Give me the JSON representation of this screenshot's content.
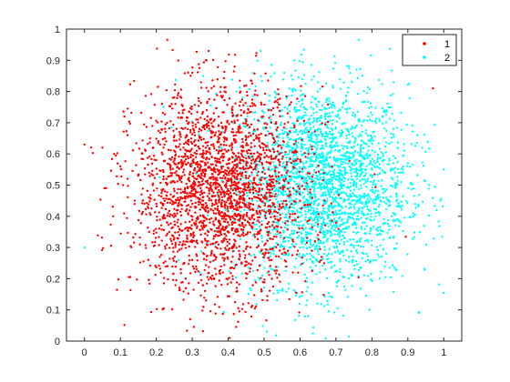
{
  "chart_data": {
    "type": "scatter",
    "title": "",
    "xlabel": "",
    "ylabel": "",
    "xlim": [
      -0.05,
      1.05
    ],
    "ylim": [
      0,
      1
    ],
    "xticks": [
      "0",
      "0.1",
      "0.2",
      "0.3",
      "0.4",
      "0.5",
      "0.6",
      "0.7",
      "0.8",
      "0.9",
      "1"
    ],
    "yticks": [
      "0",
      "0.1",
      "0.2",
      "0.3",
      "0.4",
      "0.5",
      "0.6",
      "0.7",
      "0.8",
      "0.9",
      "1"
    ],
    "grid": false,
    "legend_position": "top-right",
    "series": [
      {
        "name": "1",
        "color": "#ff0000",
        "approx_center": [
          0.38,
          0.48
        ],
        "x": [
          0.0,
          0.05,
          0.06,
          0.08,
          0.1,
          0.12,
          0.14,
          0.15,
          0.17,
          0.18,
          0.19,
          0.2,
          0.2,
          0.21,
          0.22,
          0.22,
          0.23,
          0.23,
          0.24,
          0.24,
          0.25,
          0.25,
          0.26,
          0.26,
          0.27,
          0.27,
          0.28,
          0.28,
          0.29,
          0.29,
          0.3,
          0.3,
          0.3,
          0.31,
          0.31,
          0.32,
          0.32,
          0.33,
          0.33,
          0.34,
          0.34,
          0.35,
          0.35,
          0.36,
          0.36,
          0.37,
          0.37,
          0.38,
          0.38,
          0.39,
          0.39,
          0.4,
          0.4,
          0.41,
          0.41,
          0.42,
          0.42,
          0.43,
          0.44,
          0.45,
          0.46,
          0.47,
          0.48,
          0.49,
          0.5,
          0.51,
          0.52,
          0.53,
          0.55,
          0.56,
          0.58,
          0.6,
          0.62,
          0.64,
          0.66,
          0.7,
          0.97
        ],
        "y": [
          0.63,
          0.62,
          0.49,
          0.4,
          0.56,
          0.66,
          0.45,
          0.53,
          0.61,
          0.35,
          0.5,
          0.58,
          0.44,
          0.27,
          0.62,
          0.52,
          0.38,
          0.7,
          0.56,
          0.47,
          0.33,
          0.61,
          0.53,
          0.42,
          0.78,
          0.58,
          0.49,
          0.36,
          0.64,
          0.52,
          0.44,
          0.26,
          0.86,
          0.57,
          0.48,
          0.38,
          0.68,
          0.54,
          0.45,
          0.31,
          0.9,
          0.6,
          0.5,
          0.41,
          0.73,
          0.55,
          0.35,
          0.63,
          0.47,
          0.28,
          0.8,
          0.52,
          0.4,
          0.67,
          0.44,
          0.32,
          0.58,
          0.49,
          0.37,
          0.71,
          0.43,
          0.55,
          0.3,
          0.62,
          0.46,
          0.35,
          0.74,
          0.4,
          0.28,
          0.52,
          0.22,
          0.45,
          0.33,
          0.6,
          0.27,
          0.38,
          0.81
        ]
      },
      {
        "name": "2",
        "color": "#00ffff",
        "approx_center": [
          0.66,
          0.5
        ],
        "x": [
          0.0,
          0.22,
          0.28,
          0.33,
          0.38,
          0.41,
          0.44,
          0.47,
          0.49,
          0.51,
          0.53,
          0.55,
          0.56,
          0.57,
          0.58,
          0.59,
          0.6,
          0.61,
          0.62,
          0.63,
          0.64,
          0.65,
          0.66,
          0.67,
          0.68,
          0.69,
          0.7,
          0.71,
          0.72,
          0.73,
          0.74,
          0.75,
          0.76,
          0.77,
          0.78,
          0.79,
          0.8,
          0.81,
          0.82,
          0.83,
          0.84,
          0.85,
          0.86,
          0.87,
          0.88,
          0.9,
          0.92,
          0.94,
          0.96,
          0.98,
          1.0
        ],
        "y": [
          0.3,
          0.75,
          0.2,
          0.85,
          0.62,
          0.38,
          0.78,
          0.5,
          0.93,
          0.66,
          0.42,
          0.72,
          0.55,
          0.3,
          0.8,
          0.62,
          0.47,
          0.25,
          0.7,
          0.56,
          0.37,
          0.83,
          0.6,
          0.44,
          0.28,
          0.66,
          0.52,
          0.35,
          0.76,
          0.58,
          0.41,
          0.3,
          0.63,
          0.49,
          0.36,
          0.72,
          0.55,
          0.4,
          0.27,
          0.6,
          0.46,
          0.33,
          0.68,
          0.5,
          0.38,
          0.57,
          0.44,
          0.62,
          0.5,
          0.42,
          0.55
        ]
      }
    ]
  }
}
